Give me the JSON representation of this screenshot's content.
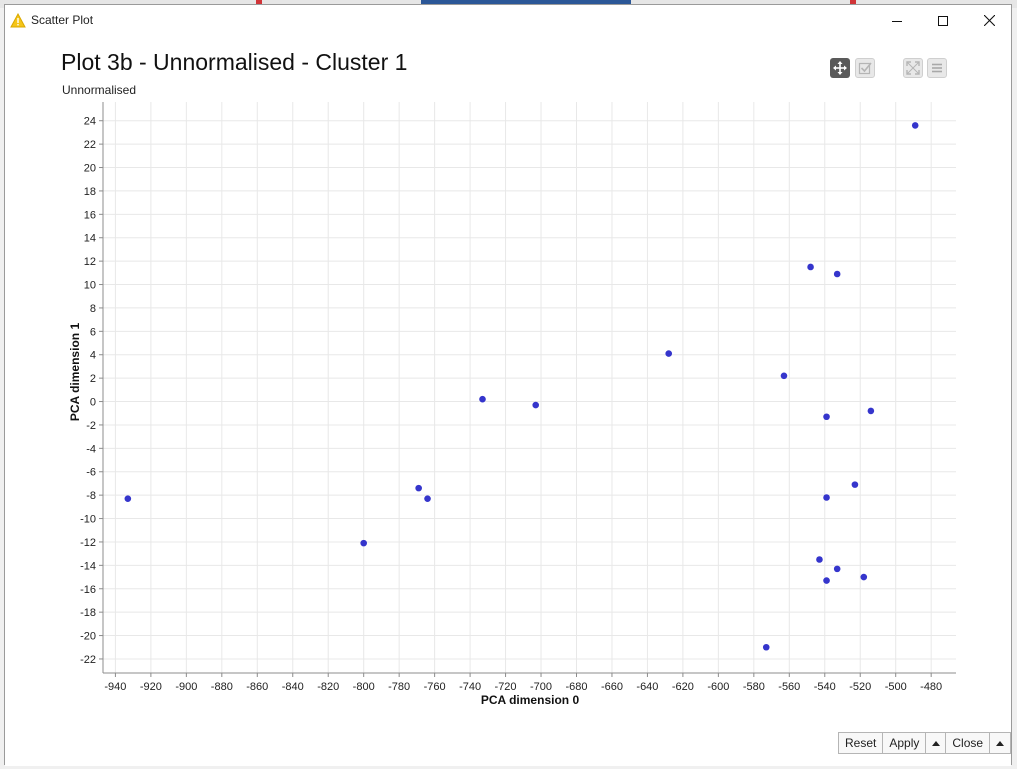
{
  "window": {
    "title": "Scatter Plot",
    "app_icon": "warning-triangle-icon",
    "controls": [
      "minimize-icon",
      "maximize-icon",
      "close-icon"
    ]
  },
  "plot": {
    "title": "Plot 3b - Unnormalised - Cluster 1",
    "subtitle": "Unnormalised"
  },
  "toolbar": {
    "icons": [
      "pan-move-icon",
      "select-check-icon",
      "fullscreen-icon",
      "menu-icon"
    ]
  },
  "footer": {
    "reset_label": "Reset",
    "apply_label": "Apply",
    "close_label": "Close",
    "arrow_icon": "arrow-up-icon"
  },
  "colors": {
    "point": "#3535cc",
    "grid": "#e8e8e8",
    "axis": "#8c8c8c",
    "active_tool": "#5a5a5a",
    "inactive_tool": "#cfcfcf"
  },
  "chart_data": {
    "type": "scatter",
    "title": "Plot 3b - Unnormalised - Cluster 1",
    "subtitle": "Unnormalised",
    "xlabel": "PCA dimension 0",
    "ylabel": "PCA dimension 1",
    "xlim": [
      -947,
      -466
    ],
    "ylim": [
      -23.2,
      25.6
    ],
    "xticks": [
      -940,
      -920,
      -900,
      -880,
      -860,
      -840,
      -820,
      -800,
      -780,
      -760,
      -740,
      -720,
      -700,
      -680,
      -660,
      -640,
      -620,
      -600,
      -580,
      -560,
      -540,
      -520,
      -500,
      -480
    ],
    "yticks": [
      -22,
      -20,
      -18,
      -16,
      -14,
      -12,
      -10,
      -8,
      -6,
      -4,
      -2,
      0,
      2,
      4,
      6,
      8,
      10,
      12,
      14,
      16,
      18,
      20,
      22,
      24
    ],
    "grid": true,
    "legend": "none",
    "series": [
      {
        "x": [
          -933,
          -800,
          -769,
          -764,
          -733,
          -703,
          -628,
          -563,
          -548,
          -533,
          -539,
          -514,
          -523,
          -539,
          -543,
          -533,
          -539,
          -518,
          -573,
          -489
        ],
        "y": [
          -8.3,
          -12.1,
          -7.4,
          -8.3,
          0.2,
          -0.3,
          4.1,
          2.2,
          11.5,
          10.9,
          -1.3,
          -0.8,
          -7.1,
          -8.2,
          -13.5,
          -14.3,
          -15.3,
          -15.0,
          -21.0,
          23.6
        ]
      }
    ]
  }
}
